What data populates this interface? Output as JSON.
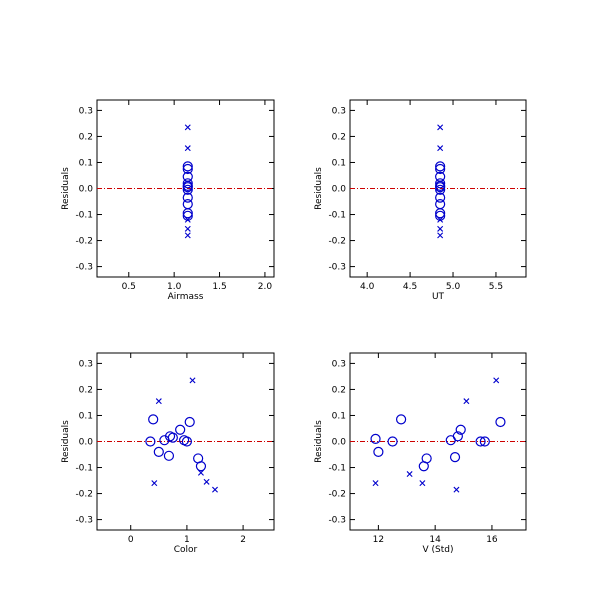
{
  "colors": {
    "points": "#0000cc",
    "zero_line": "#cc0000",
    "axes": "#000000"
  },
  "chart_data": [
    {
      "type": "scatter",
      "xlabel": "Airmass",
      "ylabel": "Residuals",
      "xlim": [
        0.15,
        2.1
      ],
      "ylim": [
        -0.34,
        0.34
      ],
      "xticks": [
        0.5,
        1.0,
        1.5,
        2.0
      ],
      "xticklabels": [
        "0.5",
        "1.0",
        "1.5",
        "2.0"
      ],
      "yticks": [
        -0.3,
        -0.2,
        -0.1,
        0.0,
        0.1,
        0.2,
        0.3
      ],
      "yticklabels": [
        "-0.3",
        "-0.2",
        "-0.1",
        "0.0",
        "0.1",
        "0.2",
        "0.3"
      ],
      "reference_line": {
        "y": 0.0,
        "style": "dash-dot"
      },
      "series": [
        {
          "marker": "circle",
          "points": [
            [
              1.15,
              0.085
            ],
            [
              1.15,
              0.075
            ],
            [
              1.15,
              0.045
            ],
            [
              1.15,
              0.02
            ],
            [
              1.15,
              0.01
            ],
            [
              1.15,
              0.005
            ],
            [
              1.15,
              -0.005
            ],
            [
              1.15,
              -0.035
            ],
            [
              1.15,
              -0.06
            ],
            [
              1.15,
              -0.095
            ],
            [
              1.15,
              -0.105
            ]
          ]
        },
        {
          "marker": "x",
          "points": [
            [
              1.15,
              0.235
            ],
            [
              1.15,
              0.155
            ],
            [
              1.15,
              -0.12
            ],
            [
              1.15,
              -0.155
            ],
            [
              1.15,
              -0.18
            ]
          ]
        }
      ]
    },
    {
      "type": "scatter",
      "xlabel": "UT",
      "ylabel": "Residuals",
      "xlim": [
        3.8,
        5.85
      ],
      "ylim": [
        -0.34,
        0.34
      ],
      "xticks": [
        4.0,
        4.5,
        5.0,
        5.5
      ],
      "xticklabels": [
        "4.0",
        "4.5",
        "5.0",
        "5.5"
      ],
      "yticks": [
        -0.3,
        -0.2,
        -0.1,
        0.0,
        0.1,
        0.2,
        0.3
      ],
      "yticklabels": [
        "-0.3",
        "-0.2",
        "-0.1",
        "0.0",
        "0.1",
        "0.2",
        "0.3"
      ],
      "reference_line": {
        "y": 0.0,
        "style": "dash-dot"
      },
      "series": [
        {
          "marker": "circle",
          "points": [
            [
              4.85,
              0.085
            ],
            [
              4.85,
              0.075
            ],
            [
              4.85,
              0.045
            ],
            [
              4.85,
              0.02
            ],
            [
              4.85,
              0.01
            ],
            [
              4.85,
              0.005
            ],
            [
              4.85,
              -0.005
            ],
            [
              4.85,
              -0.035
            ],
            [
              4.85,
              -0.06
            ],
            [
              4.85,
              -0.095
            ],
            [
              4.85,
              -0.105
            ]
          ]
        },
        {
          "marker": "x",
          "points": [
            [
              4.85,
              0.235
            ],
            [
              4.85,
              0.155
            ],
            [
              4.85,
              -0.12
            ],
            [
              4.85,
              -0.155
            ],
            [
              4.85,
              -0.18
            ]
          ]
        }
      ]
    },
    {
      "type": "scatter",
      "xlabel": "Color",
      "ylabel": "Residuals",
      "xlim": [
        -0.6,
        2.55
      ],
      "ylim": [
        -0.34,
        0.34
      ],
      "xticks": [
        0,
        1,
        2
      ],
      "xticklabels": [
        "0",
        "1",
        "2"
      ],
      "yticks": [
        -0.3,
        -0.2,
        -0.1,
        0.0,
        0.1,
        0.2,
        0.3
      ],
      "yticklabels": [
        "-0.3",
        "-0.2",
        "-0.1",
        "0.0",
        "0.1",
        "0.2",
        "0.3"
      ],
      "reference_line": {
        "y": 0.0,
        "style": "dash-dot"
      },
      "series": [
        {
          "marker": "circle",
          "points": [
            [
              0.35,
              0.0
            ],
            [
              0.4,
              0.085
            ],
            [
              0.5,
              -0.04
            ],
            [
              0.6,
              0.005
            ],
            [
              0.68,
              -0.055
            ],
            [
              0.7,
              0.02
            ],
            [
              0.75,
              0.015
            ],
            [
              0.88,
              0.045
            ],
            [
              0.95,
              0.005
            ],
            [
              1.0,
              0.0
            ],
            [
              1.05,
              0.075
            ],
            [
              1.2,
              -0.065
            ],
            [
              1.25,
              -0.095
            ]
          ]
        },
        {
          "marker": "x",
          "points": [
            [
              0.42,
              -0.16
            ],
            [
              0.5,
              0.155
            ],
            [
              1.1,
              0.235
            ],
            [
              1.25,
              -0.12
            ],
            [
              1.35,
              -0.155
            ],
            [
              1.5,
              -0.185
            ]
          ]
        }
      ]
    },
    {
      "type": "scatter",
      "xlabel": "V (Std)",
      "ylabel": "Residuals",
      "xlim": [
        11.0,
        17.2
      ],
      "ylim": [
        -0.34,
        0.34
      ],
      "xticks": [
        12,
        14,
        16
      ],
      "xticklabels": [
        "12",
        "14",
        "16"
      ],
      "yticks": [
        -0.3,
        -0.2,
        -0.1,
        0.0,
        0.1,
        0.2,
        0.3
      ],
      "yticklabels": [
        "-0.3",
        "-0.2",
        "-0.1",
        "0.0",
        "0.1",
        "0.2",
        "0.3"
      ],
      "reference_line": {
        "y": 0.0,
        "style": "dash-dot"
      },
      "series": [
        {
          "marker": "circle",
          "points": [
            [
              11.9,
              0.01
            ],
            [
              12.0,
              -0.04
            ],
            [
              12.5,
              0.0
            ],
            [
              12.8,
              0.085
            ],
            [
              13.6,
              -0.095
            ],
            [
              13.7,
              -0.065
            ],
            [
              14.55,
              0.005
            ],
            [
              14.7,
              -0.06
            ],
            [
              14.8,
              0.02
            ],
            [
              14.9,
              0.045
            ],
            [
              15.6,
              0.0
            ],
            [
              15.75,
              0.0
            ],
            [
              16.3,
              0.075
            ]
          ]
        },
        {
          "marker": "x",
          "points": [
            [
              11.9,
              -0.16
            ],
            [
              13.1,
              -0.125
            ],
            [
              13.55,
              -0.16
            ],
            [
              14.75,
              -0.185
            ],
            [
              15.1,
              0.155
            ],
            [
              16.15,
              0.235
            ]
          ]
        }
      ]
    }
  ]
}
